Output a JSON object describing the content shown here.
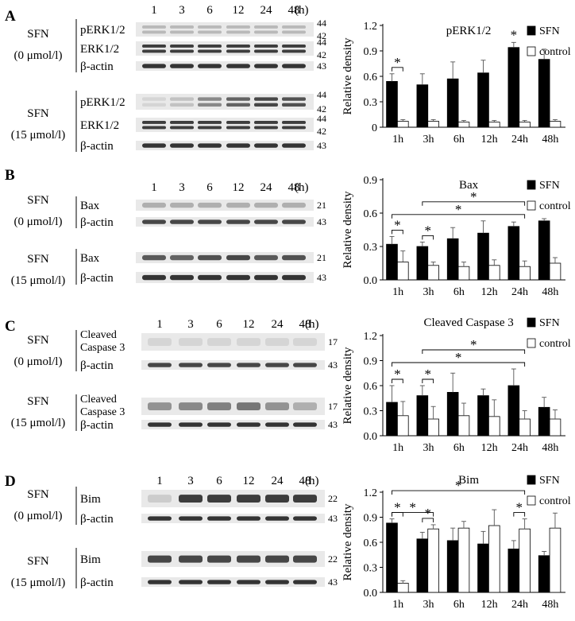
{
  "colors": {
    "sfn_bar": "#000000",
    "control_bar": "#ffffff",
    "band": "#2a2a2a",
    "blot_bg": "#e9e9e9"
  },
  "panels": [
    {
      "letter": "A",
      "lanes": [
        "1",
        "3",
        "6",
        "12",
        "24",
        "48"
      ],
      "lane_unit": "(h)",
      "groups": [
        {
          "cond": [
            "SFN",
            "(0 μmol/l)"
          ],
          "rows": [
            {
              "label": [
                "pERK1/2"
              ],
              "mw": [
                "44",
                "42"
              ],
              "bands": [
                0.25,
                0.25,
                0.25,
                0.25,
                0.25,
                0.25
              ],
              "double": true
            },
            {
              "label": [
                "ERK1/2"
              ],
              "mw": [
                "44",
                "42"
              ],
              "bands": [
                0.9,
                0.9,
                0.9,
                0.9,
                0.9,
                0.9
              ],
              "double": true
            },
            {
              "label": [
                "β-actin"
              ],
              "mw": [
                "43"
              ],
              "bands": [
                0.95,
                0.95,
                0.95,
                0.95,
                0.95,
                0.95
              ],
              "double": false
            }
          ]
        },
        {
          "cond": [
            "SFN",
            "(15 μmol/l)"
          ],
          "rows": [
            {
              "label": [
                "pERK1/2"
              ],
              "mw": [
                "44",
                "42"
              ],
              "bands": [
                0.1,
                0.2,
                0.5,
                0.7,
                0.85,
                0.8
              ],
              "double": true
            },
            {
              "label": [
                "ERK1/2"
              ],
              "mw": [
                "44",
                "42"
              ],
              "bands": [
                0.9,
                0.9,
                0.9,
                0.9,
                0.9,
                0.9
              ],
              "double": true
            },
            {
              "label": [
                "β-actin"
              ],
              "mw": [
                "43"
              ],
              "bands": [
                0.95,
                0.95,
                0.95,
                0.95,
                0.95,
                0.95
              ],
              "double": false
            }
          ]
        }
      ],
      "chart": {
        "title": "pERK1/2",
        "ylabel": "Relative density",
        "ymax": 1.2,
        "yticks": [
          "0",
          "0.3",
          "0.6",
          "0.9",
          "1.2"
        ]
      }
    },
    {
      "letter": "B",
      "lanes": [
        "1",
        "3",
        "6",
        "12",
        "24",
        "48"
      ],
      "lane_unit": "(h)",
      "groups": [
        {
          "cond": [
            "SFN",
            "(0 μmol/l)"
          ],
          "rows": [
            {
              "label": [
                "Bax"
              ],
              "mw": [
                "21"
              ],
              "bands": [
                0.3,
                0.3,
                0.3,
                0.3,
                0.3,
                0.3
              ],
              "double": false
            },
            {
              "label": [
                "β-actin"
              ],
              "mw": [
                "43"
              ],
              "bands": [
                0.85,
                0.85,
                0.85,
                0.85,
                0.85,
                0.85
              ],
              "double": false
            }
          ]
        },
        {
          "cond": [
            "SFN",
            "(15 μmol/l)"
          ],
          "rows": [
            {
              "label": [
                "Bax"
              ],
              "mw": [
                "21"
              ],
              "bands": [
                0.75,
                0.7,
                0.8,
                0.85,
                0.75,
                0.8
              ],
              "double": false
            },
            {
              "label": [
                "β-actin"
              ],
              "mw": [
                "43"
              ],
              "bands": [
                0.95,
                0.95,
                0.95,
                0.95,
                0.95,
                0.95
              ],
              "double": false
            }
          ]
        }
      ],
      "chart": {
        "title": "Bax",
        "ylabel": "Relative density",
        "ymax": 0.9,
        "yticks": [
          "0.0",
          "0.3",
          "0.6",
          "0.9"
        ]
      }
    },
    {
      "letter": "C",
      "lanes": [
        "1",
        "3",
        "6",
        "12",
        "24",
        "48"
      ],
      "lane_unit": "(h)",
      "groups": [
        {
          "cond": [
            "SFN",
            "(0 μmol/l)"
          ],
          "rows": [
            {
              "label": [
                "Cleaved",
                "Caspase 3"
              ],
              "mw": [
                "17"
              ],
              "bands": [
                0.1,
                0.1,
                0.1,
                0.1,
                0.1,
                0.1
              ],
              "double": false
            },
            {
              "label": [
                "β-actin"
              ],
              "mw": [
                "43"
              ],
              "bands": [
                0.85,
                0.85,
                0.85,
                0.85,
                0.85,
                0.85
              ],
              "double": false
            }
          ]
        },
        {
          "cond": [
            "SFN",
            "(15 μmol/l)"
          ],
          "rows": [
            {
              "label": [
                "Cleaved",
                "Caspase 3"
              ],
              "mw": [
                "17"
              ],
              "bands": [
                0.45,
                0.5,
                0.55,
                0.6,
                0.45,
                0.3
              ],
              "double": false
            },
            {
              "label": [
                "β-actin"
              ],
              "mw": [
                "43"
              ],
              "bands": [
                0.95,
                0.95,
                0.95,
                0.95,
                0.95,
                0.95
              ],
              "double": false
            }
          ]
        }
      ],
      "chart": {
        "title": "Cleaved  Caspase 3",
        "ylabel": "Relative density",
        "ymax": 1.2,
        "yticks": [
          "0.0",
          "0.3",
          "0.6",
          "0.9",
          "1.2"
        ]
      }
    },
    {
      "letter": "D",
      "lanes": [
        "1",
        "3",
        "6",
        "12",
        "24",
        "48"
      ],
      "lane_unit": "(h)",
      "groups": [
        {
          "cond": [
            "SFN",
            "(0 μmol/l)"
          ],
          "rows": [
            {
              "label": [
                "Bim"
              ],
              "mw": [
                "22"
              ],
              "bands": [
                0.15,
                0.9,
                0.9,
                0.9,
                0.9,
                0.9
              ],
              "double": false
            },
            {
              "label": [
                "β-actin"
              ],
              "mw": [
                "43"
              ],
              "bands": [
                0.95,
                0.95,
                0.95,
                0.95,
                0.95,
                0.95
              ],
              "double": false
            }
          ]
        },
        {
          "cond": [
            "SFN",
            "(15 μmol/l)"
          ],
          "rows": [
            {
              "label": [
                "Bim"
              ],
              "mw": [
                "22"
              ],
              "bands": [
                0.85,
                0.85,
                0.85,
                0.85,
                0.85,
                0.85
              ],
              "double": false
            },
            {
              "label": [
                "β-actin"
              ],
              "mw": [
                "43"
              ],
              "bands": [
                0.95,
                0.95,
                0.95,
                0.95,
                0.95,
                0.95
              ],
              "double": false
            }
          ]
        }
      ],
      "chart": {
        "title": "Bim",
        "ylabel": "Relative density",
        "ymax": 1.2,
        "yticks": [
          "0.0",
          "0.3",
          "0.6",
          "0.9",
          "1.2"
        ]
      }
    }
  ],
  "chart_data": [
    {
      "type": "bar",
      "title": "pERK1/2",
      "ylabel": "Relative density",
      "ylim": [
        0,
        1.2
      ],
      "categories": [
        "1h",
        "3h",
        "6h",
        "12h",
        "24h",
        "48h"
      ],
      "series": [
        {
          "name": "SFN",
          "values": [
            0.54,
            0.5,
            0.57,
            0.64,
            0.94,
            0.8
          ],
          "errors": [
            0.09,
            0.13,
            0.2,
            0.15,
            0.06,
            0.12
          ]
        },
        {
          "name": "control",
          "values": [
            0.07,
            0.07,
            0.06,
            0.06,
            0.06,
            0.07
          ],
          "errors": [
            0.02,
            0.02,
            0.02,
            0.02,
            0.02,
            0.02
          ]
        }
      ],
      "significance": [
        {
          "from": "1h",
          "to": "1h",
          "label": "*"
        },
        {
          "at": "24h",
          "label": "*"
        }
      ]
    },
    {
      "type": "bar",
      "title": "Bax",
      "ylabel": "Relative density",
      "ylim": [
        0,
        0.9
      ],
      "categories": [
        "1h",
        "3h",
        "6h",
        "12h",
        "24h",
        "48h"
      ],
      "series": [
        {
          "name": "SFN",
          "values": [
            0.32,
            0.3,
            0.37,
            0.42,
            0.48,
            0.53
          ],
          "errors": [
            0.07,
            0.04,
            0.1,
            0.11,
            0.04,
            0.02
          ]
        },
        {
          "name": "control",
          "values": [
            0.16,
            0.13,
            0.12,
            0.13,
            0.12,
            0.15
          ],
          "errors": [
            0.1,
            0.03,
            0.04,
            0.05,
            0.05,
            0.05
          ]
        }
      ],
      "significance": [
        {
          "from": "1h",
          "to": "1h",
          "label": "*"
        },
        {
          "from": "3h",
          "to": "3h",
          "label": "*"
        },
        {
          "from": "1h",
          "to": "24h",
          "label": "*"
        },
        {
          "from": "3h",
          "to": "24h",
          "label": "*"
        }
      ]
    },
    {
      "type": "bar",
      "title": "Cleaved  Caspase 3",
      "ylabel": "Relative density",
      "ylim": [
        0,
        1.2
      ],
      "categories": [
        "1h",
        "3h",
        "6h",
        "12h",
        "24h",
        "48h"
      ],
      "series": [
        {
          "name": "SFN",
          "values": [
            0.4,
            0.48,
            0.52,
            0.48,
            0.6,
            0.34
          ],
          "errors": [
            0.2,
            0.12,
            0.23,
            0.08,
            0.2,
            0.12
          ]
        },
        {
          "name": "control",
          "values": [
            0.24,
            0.2,
            0.24,
            0.23,
            0.2,
            0.2
          ],
          "errors": [
            0.17,
            0.15,
            0.15,
            0.2,
            0.1,
            0.11
          ]
        }
      ],
      "significance": [
        {
          "from": "1h",
          "to": "1h",
          "label": "*"
        },
        {
          "from": "3h",
          "to": "3h",
          "label": "*"
        },
        {
          "from": "1h",
          "to": "24h",
          "label": "*"
        },
        {
          "from": "3h",
          "to": "24h",
          "label": "*"
        }
      ]
    },
    {
      "type": "bar",
      "title": "Bim",
      "ylabel": "Relative density",
      "ylim": [
        0,
        1.2
      ],
      "categories": [
        "1h",
        "3h",
        "6h",
        "12h",
        "24h",
        "48h"
      ],
      "series": [
        {
          "name": "SFN",
          "values": [
            0.83,
            0.64,
            0.62,
            0.58,
            0.52,
            0.44
          ],
          "errors": [
            0.05,
            0.08,
            0.15,
            0.15,
            0.1,
            0.05
          ]
        },
        {
          "name": "control",
          "values": [
            0.11,
            0.76,
            0.77,
            0.8,
            0.76,
            0.77
          ],
          "errors": [
            0.03,
            0.05,
            0.08,
            0.19,
            0.12,
            0.18
          ]
        }
      ],
      "significance": [
        {
          "from": "1h",
          "to": "1h",
          "label": "*"
        },
        {
          "from": "1h",
          "to": "3h",
          "label": "*"
        },
        {
          "from": "3h",
          "to": "3h",
          "label": "*"
        },
        {
          "from": "1h",
          "to": "24h",
          "label": "*"
        },
        {
          "from": "24h",
          "to": "24h",
          "label": "*"
        }
      ]
    }
  ]
}
